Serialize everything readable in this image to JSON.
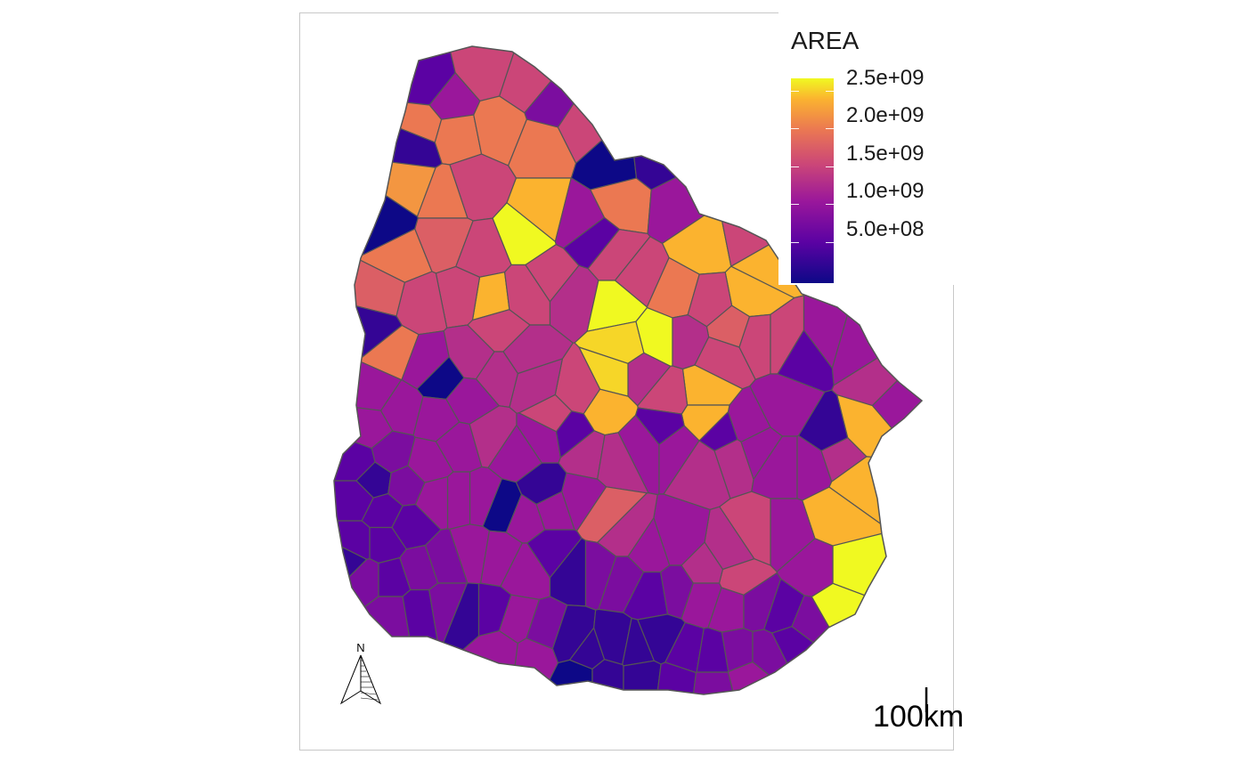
{
  "legend": {
    "title": "AREA",
    "ticks": [
      {
        "label": "2.5e+09",
        "value": 2500000000
      },
      {
        "label": "2.0e+09",
        "value": 2000000000
      },
      {
        "label": "1.5e+09",
        "value": 1500000000
      },
      {
        "label": "1.0e+09",
        "value": 1000000000
      },
      {
        "label": "5.0e+08",
        "value": 500000000
      }
    ],
    "range_min": 180000000,
    "range_max": 2600000000,
    "palette": [
      "#0d0887",
      "#5b02a3",
      "#9a179b",
      "#cb4678",
      "#eb7852",
      "#fbb32f",
      "#f0f921"
    ]
  },
  "map": {
    "border_color": "#555555",
    "frame_color": "#c8c8c8"
  },
  "north_arrow": {
    "label": "N"
  },
  "scale_bar": {
    "label": "100km"
  }
}
